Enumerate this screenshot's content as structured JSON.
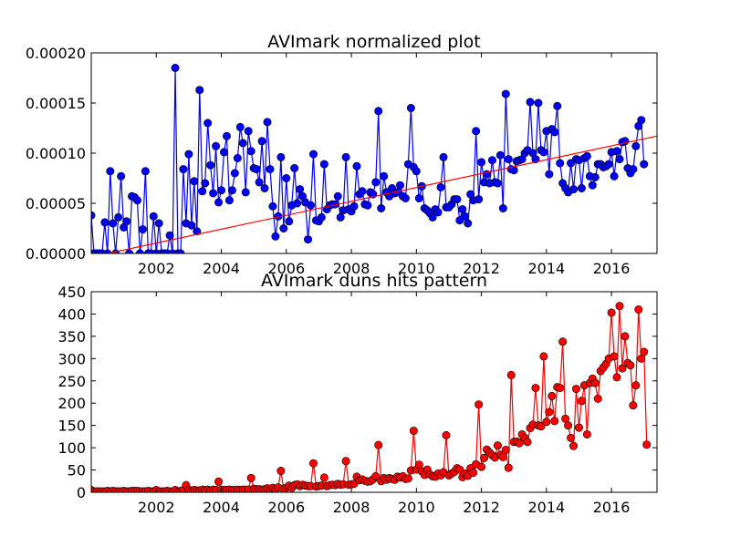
{
  "chart_data": [
    {
      "type": "line",
      "title": "AVImark normalized plot",
      "xlabel": "",
      "ylabel": "",
      "xlim": [
        2000.0,
        2017.4
      ],
      "ylim": [
        0,
        0.0002
      ],
      "xticks": [
        2002,
        2004,
        2006,
        2008,
        2010,
        2012,
        2014,
        2016
      ],
      "yticks": [
        "0.00000",
        "0.00005",
        "0.00010",
        "0.00015",
        "0.00020"
      ],
      "grid": false,
      "legend": "none",
      "series": [
        {
          "color": "#0000ff",
          "marker": "circle",
          "x_start": 2000.0,
          "x_step": 0.083333,
          "values": [
            3.8e-05,
            0,
            0,
            0,
            0,
            3.1e-05,
            0,
            8.2e-05,
            3e-05,
            0,
            3.6e-05,
            7.7e-05,
            2.6e-05,
            3.2e-05,
            0,
            5.7e-05,
            5.6e-05,
            5.3e-05,
            0,
            2.4e-05,
            8.2e-05,
            0,
            0,
            3.7e-05,
            0,
            3e-05,
            0,
            0,
            0,
            1.8e-05,
            0,
            0.000185,
            0,
            0,
            8.4e-05,
            3e-05,
            9.9e-05,
            2.8e-05,
            7.2e-05,
            2.2e-05,
            0.000163,
            6.2e-05,
            7e-05,
            0.00013,
            8.8e-05,
            6e-05,
            0.000107,
            5.1e-05,
            6.3e-05,
            0.000101,
            0.000117,
            5.3e-05,
            6.3e-05,
            8e-05,
            9.5e-05,
            0.000126,
            0.00011,
            6.1e-05,
            0.000122,
            0.000102,
            8.5e-05,
            8.4e-05,
            7.1e-05,
            0.000112,
            6.5e-05,
            0.000131,
            8.4e-05,
            4.7e-05,
            1.7e-05,
            3.7e-05,
            9.6e-05,
            2.5e-05,
            7.5e-05,
            3.2e-05,
            4.8e-05,
            8.5e-05,
            5e-05,
            6.4e-05,
            5.7e-05,
            5.1e-05,
            1.4e-05,
            4.8e-05,
            9.9e-05,
            3.3e-05,
            3.2e-05,
            3.6e-05,
            8.9e-05,
            4.4e-05,
            4.8e-05,
            4.9e-05,
            4.9e-05,
            5.7e-05,
            3.6e-05,
            4.3e-05,
            9.6e-05,
            4.4e-05,
            4.2e-05,
            4.7e-05,
            8.7e-05,
            5.9e-05,
            6.2e-05,
            4.9e-05,
            4.8e-05,
            6.1e-05,
            5.9e-05,
            7.1e-05,
            0.000142,
            4.5e-05,
            7.7e-05,
            6.1e-05,
            5.7e-05,
            6.5e-05,
            6e-05,
            6.1e-05,
            6.8e-05,
            5.7e-05,
            5.5e-05,
            8.9e-05,
            0.000145,
            8.6e-05,
            8.2e-05,
            5.5e-05,
            6.7e-05,
            4.5e-05,
            4.3e-05,
            4e-05,
            3.6e-05,
            4.4e-05,
            4.1e-05,
            6.6e-05,
            9.6e-05,
            4.6e-05,
            4.6e-05,
            4.9e-05,
            5.4e-05,
            5.4e-05,
            3.3e-05,
            4.4e-05,
            3.7e-05,
            3e-05,
            5.9e-05,
            5.3e-05,
            0.000122,
            5.4e-05,
            9.1e-05,
            7.1e-05,
            7.9e-05,
            7e-05,
            9.3e-05,
            7.1e-05,
            7e-05,
            9.8e-05,
            4.5e-05,
            0.000159,
            9.4e-05,
            8.4e-05,
            8.3e-05,
            9.2e-05,
            9.3e-05,
            9.4e-05,
            0.0001,
            0.000103,
            0.000151,
            0.0001,
            9.4e-05,
            0.00015,
            0.000103,
            0.000101,
            0.000122,
            7.9e-05,
            0.000124,
            0.000121,
            0.000147,
            9e-05,
            7e-05,
            6.5e-05,
            6.1e-05,
            9e-05,
            6.4e-05,
            9.4e-05,
            9.3e-05,
            6.5e-05,
            9.5e-05,
            9.7e-05,
            7.7e-05,
            6.8e-05,
            7.6e-05,
            8.9e-05,
            8.9e-05,
            8.6e-05,
            8.7e-05,
            8.9e-05,
            0.000101,
            7.7e-05,
            0.000102,
            9.4e-05,
            0.000111,
            0.000112,
            8.5e-05,
            8e-05,
            8.4e-05,
            0.000107,
            0.000127,
            0.000133,
            8.9e-05
          ]
        },
        {
          "color": "#ff0000",
          "marker": "none",
          "kind": "trend",
          "x": [
            2000.0,
            2017.4
          ],
          "values": [
            -3.5e-06,
            0.000117
          ]
        }
      ]
    },
    {
      "type": "line",
      "title": "AVImark duns hits pattern",
      "xlabel": "",
      "ylabel": "",
      "xlim": [
        2000.0,
        2017.4
      ],
      "ylim": [
        0,
        450
      ],
      "xticks": [
        2002,
        2004,
        2006,
        2008,
        2010,
        2012,
        2014,
        2016
      ],
      "yticks": [
        "0",
        "50",
        "100",
        "150",
        "200",
        "250",
        "300",
        "350",
        "400",
        "450"
      ],
      "grid": false,
      "legend": "none",
      "series": [
        {
          "color": "#ff0000",
          "marker": "circle",
          "x_start": 2000.0,
          "x_step": 0.083333,
          "values": [
            5,
            2,
            2,
            2,
            2,
            2,
            3,
            2,
            3,
            2,
            2,
            2,
            3,
            2,
            2,
            3,
            3,
            3,
            2,
            2,
            2,
            3,
            2,
            2,
            5,
            2,
            2,
            2,
            3,
            2,
            2,
            5,
            2,
            3,
            5,
            16,
            5,
            4,
            5,
            4,
            4,
            6,
            5,
            6,
            4,
            6,
            5,
            24,
            6,
            5,
            5,
            6,
            5,
            5,
            6,
            5,
            6,
            6,
            6,
            32,
            8,
            7,
            7,
            6,
            7,
            9,
            6,
            10,
            7,
            11,
            48,
            8,
            10,
            15,
            10,
            16,
            18,
            14,
            17,
            15,
            14,
            14,
            65,
            13,
            14,
            15,
            33,
            14,
            16,
            17,
            16,
            19,
            17,
            18,
            70,
            17,
            18,
            19,
            35,
            27,
            29,
            26,
            24,
            25,
            29,
            36,
            106,
            25,
            32,
            28,
            32,
            30,
            28,
            35,
            33,
            36,
            30,
            31,
            49,
            138,
            51,
            62,
            47,
            39,
            51,
            40,
            36,
            35,
            42,
            38,
            45,
            128,
            38,
            42,
            46,
            54,
            51,
            34,
            42,
            37,
            54,
            44,
            63,
            197,
            57,
            77,
            96,
            89,
            83,
            78,
            105,
            84,
            79,
            95,
            55,
            263,
            113,
            114,
            110,
            130,
            122,
            113,
            144,
            152,
            234,
            150,
            148,
            305,
            158,
            180,
            216,
            160,
            236,
            234,
            338,
            165,
            150,
            122,
            104,
            232,
            145,
            205,
            240,
            130,
            245,
            255,
            245,
            210,
            272,
            280,
            288,
            300,
            403,
            305,
            258,
            418,
            278,
            350,
            290,
            285,
            195,
            240,
            410,
            300,
            315,
            107
          ]
        }
      ]
    }
  ]
}
